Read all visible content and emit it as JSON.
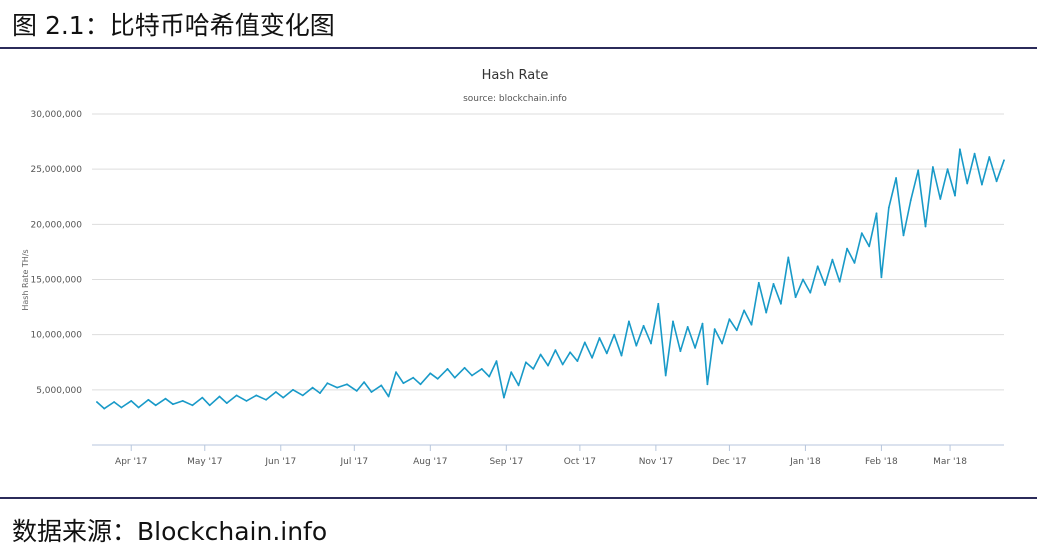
{
  "figure_caption": "图 2.1：比特币哈希值变化图",
  "source_caption": "数据来源：Blockchain.info",
  "colors": {
    "line": "#199ac8",
    "grid": "#dddddd",
    "axis": "#b7c6dc",
    "text": "#555555"
  },
  "chart_data": {
    "type": "line",
    "title": "Hash Rate",
    "subtitle": "source: blockchain.info",
    "ylabel": "Hash Rate TH/s",
    "xlabel": "",
    "ylim": [
      0,
      30000000
    ],
    "yticks": [
      5000000,
      10000000,
      15000000,
      20000000,
      25000000,
      30000000
    ],
    "ytick_labels": [
      "5,000,000",
      "10,000,000",
      "15,000,000",
      "20,000,000",
      "25,000,000",
      "30,000,000"
    ],
    "x_range": [
      "2017-03-16",
      "2018-03-23"
    ],
    "x_tick_dates": [
      "2017-04-01",
      "2017-05-01",
      "2017-06-01",
      "2017-07-01",
      "2017-08-01",
      "2017-09-01",
      "2017-10-01",
      "2017-11-01",
      "2017-12-01",
      "2018-01-01",
      "2018-02-01",
      "2018-03-01"
    ],
    "x_tick_labels": [
      "Apr '17",
      "May '17",
      "Jun '17",
      "Jul '17",
      "Aug '17",
      "Sep '17",
      "Oct '17",
      "Nov '17",
      "Dec '17",
      "Jan '18",
      "Feb '18",
      "Mar '18"
    ],
    "grid": true,
    "legend": "none",
    "series": [
      {
        "points": [
          [
            "2017-03-18",
            3900000
          ],
          [
            "2017-03-21",
            3300000
          ],
          [
            "2017-03-25",
            3900000
          ],
          [
            "2017-03-28",
            3400000
          ],
          [
            "2017-04-01",
            4000000
          ],
          [
            "2017-04-04",
            3400000
          ],
          [
            "2017-04-08",
            4100000
          ],
          [
            "2017-04-11",
            3600000
          ],
          [
            "2017-04-15",
            4200000
          ],
          [
            "2017-04-18",
            3700000
          ],
          [
            "2017-04-22",
            4000000
          ],
          [
            "2017-04-26",
            3600000
          ],
          [
            "2017-04-30",
            4300000
          ],
          [
            "2017-05-03",
            3600000
          ],
          [
            "2017-05-07",
            4400000
          ],
          [
            "2017-05-10",
            3800000
          ],
          [
            "2017-05-14",
            4500000
          ],
          [
            "2017-05-18",
            4000000
          ],
          [
            "2017-05-22",
            4500000
          ],
          [
            "2017-05-26",
            4100000
          ],
          [
            "2017-05-30",
            4800000
          ],
          [
            "2017-06-02",
            4300000
          ],
          [
            "2017-06-06",
            5000000
          ],
          [
            "2017-06-10",
            4500000
          ],
          [
            "2017-06-14",
            5200000
          ],
          [
            "2017-06-17",
            4700000
          ],
          [
            "2017-06-20",
            5600000
          ],
          [
            "2017-06-24",
            5200000
          ],
          [
            "2017-06-28",
            5500000
          ],
          [
            "2017-07-02",
            4900000
          ],
          [
            "2017-07-05",
            5700000
          ],
          [
            "2017-07-08",
            4800000
          ],
          [
            "2017-07-12",
            5400000
          ],
          [
            "2017-07-15",
            4400000
          ],
          [
            "2017-07-18",
            6600000
          ],
          [
            "2017-07-21",
            5600000
          ],
          [
            "2017-07-25",
            6100000
          ],
          [
            "2017-07-28",
            5500000
          ],
          [
            "2017-08-01",
            6500000
          ],
          [
            "2017-08-04",
            6000000
          ],
          [
            "2017-08-08",
            6900000
          ],
          [
            "2017-08-11",
            6100000
          ],
          [
            "2017-08-15",
            7000000
          ],
          [
            "2017-08-18",
            6300000
          ],
          [
            "2017-08-22",
            6900000
          ],
          [
            "2017-08-25",
            6200000
          ],
          [
            "2017-08-28",
            7600000
          ],
          [
            "2017-08-31",
            4300000
          ],
          [
            "2017-09-03",
            6600000
          ],
          [
            "2017-09-06",
            5400000
          ],
          [
            "2017-09-09",
            7500000
          ],
          [
            "2017-09-12",
            6900000
          ],
          [
            "2017-09-15",
            8200000
          ],
          [
            "2017-09-18",
            7200000
          ],
          [
            "2017-09-21",
            8600000
          ],
          [
            "2017-09-24",
            7300000
          ],
          [
            "2017-09-27",
            8400000
          ],
          [
            "2017-09-30",
            7600000
          ],
          [
            "2017-10-03",
            9300000
          ],
          [
            "2017-10-06",
            7900000
          ],
          [
            "2017-10-09",
            9700000
          ],
          [
            "2017-10-12",
            8300000
          ],
          [
            "2017-10-15",
            10000000
          ],
          [
            "2017-10-18",
            8100000
          ],
          [
            "2017-10-21",
            11200000
          ],
          [
            "2017-10-24",
            9000000
          ],
          [
            "2017-10-27",
            10800000
          ],
          [
            "2017-10-30",
            9200000
          ],
          [
            "2017-11-02",
            12800000
          ],
          [
            "2017-11-05",
            6300000
          ],
          [
            "2017-11-08",
            11200000
          ],
          [
            "2017-11-11",
            8500000
          ],
          [
            "2017-11-14",
            10700000
          ],
          [
            "2017-11-17",
            8800000
          ],
          [
            "2017-11-20",
            11000000
          ],
          [
            "2017-11-22",
            5500000
          ],
          [
            "2017-11-25",
            10500000
          ],
          [
            "2017-11-28",
            9200000
          ],
          [
            "2017-12-01",
            11400000
          ],
          [
            "2017-12-04",
            10400000
          ],
          [
            "2017-12-07",
            12200000
          ],
          [
            "2017-12-10",
            10900000
          ],
          [
            "2017-12-13",
            14700000
          ],
          [
            "2017-12-16",
            12000000
          ],
          [
            "2017-12-19",
            14600000
          ],
          [
            "2017-12-22",
            12800000
          ],
          [
            "2017-12-25",
            17000000
          ],
          [
            "2017-12-28",
            13400000
          ],
          [
            "2017-12-31",
            15000000
          ],
          [
            "2018-01-03",
            13800000
          ],
          [
            "2018-01-06",
            16200000
          ],
          [
            "2018-01-09",
            14500000
          ],
          [
            "2018-01-12",
            16800000
          ],
          [
            "2018-01-15",
            14800000
          ],
          [
            "2018-01-18",
            17800000
          ],
          [
            "2018-01-21",
            16500000
          ],
          [
            "2018-01-24",
            19200000
          ],
          [
            "2018-01-27",
            18000000
          ],
          [
            "2018-01-30",
            21000000
          ],
          [
            "2018-02-01",
            15200000
          ],
          [
            "2018-02-04",
            21500000
          ],
          [
            "2018-02-07",
            24200000
          ],
          [
            "2018-02-10",
            19000000
          ],
          [
            "2018-02-13",
            22200000
          ],
          [
            "2018-02-16",
            24900000
          ],
          [
            "2018-02-19",
            19800000
          ],
          [
            "2018-02-22",
            25200000
          ],
          [
            "2018-02-25",
            22300000
          ],
          [
            "2018-02-28",
            25000000
          ],
          [
            "2018-03-03",
            22600000
          ],
          [
            "2018-03-05",
            26800000
          ],
          [
            "2018-03-08",
            23700000
          ],
          [
            "2018-03-11",
            26400000
          ],
          [
            "2018-03-14",
            23600000
          ],
          [
            "2018-03-17",
            26100000
          ],
          [
            "2018-03-20",
            23900000
          ],
          [
            "2018-03-23",
            25800000
          ]
        ]
      }
    ]
  }
}
